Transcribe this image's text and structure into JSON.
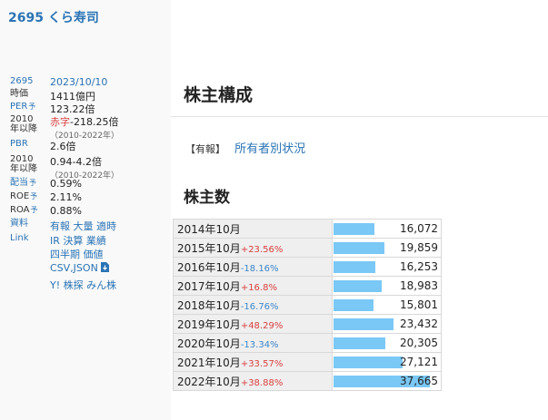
{
  "header": {
    "title": "2695 くら寿司"
  },
  "side": {
    "code": "2695",
    "date": "2023/10/10",
    "market_cap_label": "時価",
    "market_cap": "1411億円",
    "per_label": "PER",
    "yo": "予",
    "per": "123.22倍",
    "per_range_label": "2010年以降",
    "per_range_red": "赤字",
    "per_range": "-218.25倍",
    "per_range_sub": "（2010-2022年）",
    "pbr_label": "PBR",
    "pbr": "2.6倍",
    "pbr_range_label": "2010年以降",
    "pbr_range": "0.94-4.2倍",
    "pbr_range_sub": "（2010-2022年）",
    "div_label": "配当",
    "div": "0.59%",
    "roe_label": "ROE",
    "roe": "2.11%",
    "roa_label": "ROA",
    "roa": "0.88%",
    "docs_label": "資料",
    "docs": [
      "有報",
      "大量",
      "適時"
    ],
    "link_label": "Link",
    "links1": [
      "IR",
      "決算",
      "業績"
    ],
    "links2": [
      "四半期",
      "価値"
    ],
    "csv": "CSV,JSON",
    "links3": [
      "Y!",
      "株探",
      "みん株"
    ]
  },
  "main": {
    "heading": "株主構成",
    "yuho_tag": "【有報】",
    "yuho_link": "所有者別状況",
    "subheading": "株主数",
    "rows": [
      {
        "year": "2014年10月",
        "change": "",
        "dir": "",
        "count": "16,072",
        "value": 16072
      },
      {
        "year": "2015年10月",
        "change": "+23.56%",
        "dir": "up",
        "count": "19,859",
        "value": 19859
      },
      {
        "year": "2016年10月",
        "change": "-18.16%",
        "dir": "down",
        "count": "16,253",
        "value": 16253
      },
      {
        "year": "2017年10月",
        "change": "+16.8%",
        "dir": "up",
        "count": "18,983",
        "value": 18983
      },
      {
        "year": "2018年10月",
        "change": "-16.76%",
        "dir": "down",
        "count": "15,801",
        "value": 15801
      },
      {
        "year": "2019年10月",
        "change": "+48.29%",
        "dir": "up",
        "count": "23,432",
        "value": 23432
      },
      {
        "year": "2020年10月",
        "change": "-13.34%",
        "dir": "down",
        "count": "20,305",
        "value": 20305
      },
      {
        "year": "2021年10月",
        "change": "+33.57%",
        "dir": "up",
        "count": "27,121",
        "value": 27121
      },
      {
        "year": "2022年10月",
        "change": "+38.88%",
        "dir": "up",
        "count": "37,665",
        "value": 37665
      }
    ],
    "bar_color": "#7ac8f6",
    "up_color": "#d9413f",
    "down_color": "#3b86c8"
  }
}
